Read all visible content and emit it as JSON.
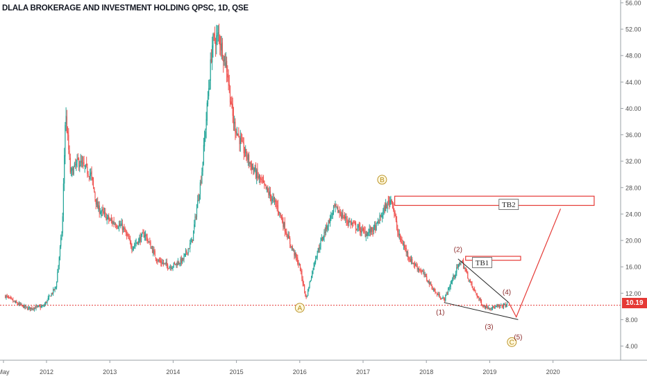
{
  "chart_data": {
    "type": "candlestick",
    "title": "DLALA BROKERAGE AND INVESTMENT HOLDING QPSC, 1D, QSE",
    "ylim": [
      0,
      56
    ],
    "y_ticks": [
      "56.00",
      "52.00",
      "48.00",
      "44.00",
      "40.00",
      "36.00",
      "32.00",
      "28.00",
      "24.00",
      "20.00",
      "16.00",
      "12.00",
      "8.00",
      "4.00"
    ],
    "x_ticks": [
      "May",
      "2012",
      "2013",
      "2014",
      "2015",
      "2016",
      "2017",
      "2018",
      "2019",
      "2020"
    ],
    "last_price": "10.19",
    "price_path": [
      {
        "x": 2011.35,
        "y": 11.6
      },
      {
        "x": 2011.5,
        "y": 10.6
      },
      {
        "x": 2011.7,
        "y": 9.7
      },
      {
        "x": 2011.95,
        "y": 10.0
      },
      {
        "x": 2012.15,
        "y": 13.0
      },
      {
        "x": 2012.25,
        "y": 22.0
      },
      {
        "x": 2012.3,
        "y": 39.5
      },
      {
        "x": 2012.38,
        "y": 30.0
      },
      {
        "x": 2012.5,
        "y": 32.0
      },
      {
        "x": 2012.7,
        "y": 30.0
      },
      {
        "x": 2012.8,
        "y": 25.0
      },
      {
        "x": 2013.0,
        "y": 23.0
      },
      {
        "x": 2013.2,
        "y": 22.0
      },
      {
        "x": 2013.35,
        "y": 19.0
      },
      {
        "x": 2013.55,
        "y": 21.0
      },
      {
        "x": 2013.75,
        "y": 17.0
      },
      {
        "x": 2013.95,
        "y": 16.0
      },
      {
        "x": 2014.15,
        "y": 17.0
      },
      {
        "x": 2014.3,
        "y": 20.0
      },
      {
        "x": 2014.45,
        "y": 30.0
      },
      {
        "x": 2014.62,
        "y": 50.0
      },
      {
        "x": 2014.72,
        "y": 51.0
      },
      {
        "x": 2014.85,
        "y": 46.0
      },
      {
        "x": 2014.95,
        "y": 38.0
      },
      {
        "x": 2015.1,
        "y": 34.0
      },
      {
        "x": 2015.25,
        "y": 31.0
      },
      {
        "x": 2015.45,
        "y": 28.0
      },
      {
        "x": 2015.65,
        "y": 25.0
      },
      {
        "x": 2015.85,
        "y": 19.5
      },
      {
        "x": 2016.0,
        "y": 16.0
      },
      {
        "x": 2016.1,
        "y": 11.2
      },
      {
        "x": 2016.25,
        "y": 17.5
      },
      {
        "x": 2016.4,
        "y": 21.5
      },
      {
        "x": 2016.55,
        "y": 25.0
      },
      {
        "x": 2016.75,
        "y": 23.0
      },
      {
        "x": 2016.9,
        "y": 22.0
      },
      {
        "x": 2017.05,
        "y": 21.0
      },
      {
        "x": 2017.2,
        "y": 22.0
      },
      {
        "x": 2017.35,
        "y": 25.0
      },
      {
        "x": 2017.45,
        "y": 26.5
      },
      {
        "x": 2017.55,
        "y": 21.0
      },
      {
        "x": 2017.75,
        "y": 17.0
      },
      {
        "x": 2017.95,
        "y": 15.0
      },
      {
        "x": 2018.15,
        "y": 12.0
      },
      {
        "x": 2018.28,
        "y": 11.0
      },
      {
        "x": 2018.45,
        "y": 15.0
      },
      {
        "x": 2018.55,
        "y": 17.0
      },
      {
        "x": 2018.72,
        "y": 13.0
      },
      {
        "x": 2018.9,
        "y": 10.0
      },
      {
        "x": 2019.05,
        "y": 9.8
      },
      {
        "x": 2019.25,
        "y": 10.2
      }
    ],
    "annotations": {
      "circled": [
        "A",
        "B",
        "C"
      ],
      "waves": [
        "(1)",
        "(2)",
        "(3)",
        "(4)",
        "(5)"
      ],
      "boxes": [
        "TB1",
        "TB2"
      ]
    },
    "colors": {
      "up": "#26a69a",
      "down": "#ef5350",
      "drawing": "#e53935",
      "label": "#b58b1a",
      "wave": "#8b2a2a",
      "axis": "#4d4d4d"
    }
  }
}
